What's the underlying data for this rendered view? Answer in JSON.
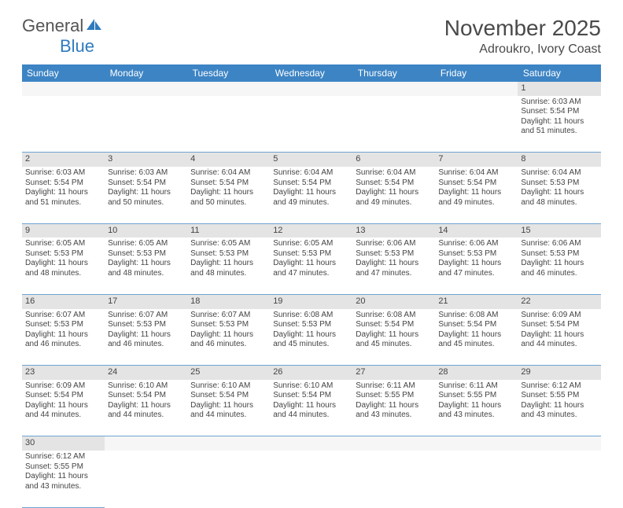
{
  "logo": {
    "part1": "General",
    "part2": "Blue"
  },
  "title": {
    "month": "November 2025",
    "location": "Adroukro, Ivory Coast"
  },
  "style": {
    "header_bg": "#3d84c4",
    "header_text": "#ffffff",
    "daynum_bg": "#e4e4e4",
    "row_border": "#6fa3d1",
    "page_bg": "#ffffff",
    "logo_gray": "#555555",
    "logo_blue": "#2f7bbf",
    "title_color": "#4a4a4a",
    "cell_font_size": 10,
    "header_font_size": 12,
    "title_font_size": 28
  },
  "weekdays": [
    "Sunday",
    "Monday",
    "Tuesday",
    "Wednesday",
    "Thursday",
    "Friday",
    "Saturday"
  ],
  "weeks": [
    {
      "nums": [
        "",
        "",
        "",
        "",
        "",
        "",
        "1"
      ],
      "cells": [
        null,
        null,
        null,
        null,
        null,
        null,
        {
          "sunrise": "6:03 AM",
          "sunset": "5:54 PM",
          "daylight": "11 hours and 51 minutes."
        }
      ]
    },
    {
      "nums": [
        "2",
        "3",
        "4",
        "5",
        "6",
        "7",
        "8"
      ],
      "cells": [
        {
          "sunrise": "6:03 AM",
          "sunset": "5:54 PM",
          "daylight": "11 hours and 51 minutes."
        },
        {
          "sunrise": "6:03 AM",
          "sunset": "5:54 PM",
          "daylight": "11 hours and 50 minutes."
        },
        {
          "sunrise": "6:04 AM",
          "sunset": "5:54 PM",
          "daylight": "11 hours and 50 minutes."
        },
        {
          "sunrise": "6:04 AM",
          "sunset": "5:54 PM",
          "daylight": "11 hours and 49 minutes."
        },
        {
          "sunrise": "6:04 AM",
          "sunset": "5:54 PM",
          "daylight": "11 hours and 49 minutes."
        },
        {
          "sunrise": "6:04 AM",
          "sunset": "5:54 PM",
          "daylight": "11 hours and 49 minutes."
        },
        {
          "sunrise": "6:04 AM",
          "sunset": "5:53 PM",
          "daylight": "11 hours and 48 minutes."
        }
      ]
    },
    {
      "nums": [
        "9",
        "10",
        "11",
        "12",
        "13",
        "14",
        "15"
      ],
      "cells": [
        {
          "sunrise": "6:05 AM",
          "sunset": "5:53 PM",
          "daylight": "11 hours and 48 minutes."
        },
        {
          "sunrise": "6:05 AM",
          "sunset": "5:53 PM",
          "daylight": "11 hours and 48 minutes."
        },
        {
          "sunrise": "6:05 AM",
          "sunset": "5:53 PM",
          "daylight": "11 hours and 48 minutes."
        },
        {
          "sunrise": "6:05 AM",
          "sunset": "5:53 PM",
          "daylight": "11 hours and 47 minutes."
        },
        {
          "sunrise": "6:06 AM",
          "sunset": "5:53 PM",
          "daylight": "11 hours and 47 minutes."
        },
        {
          "sunrise": "6:06 AM",
          "sunset": "5:53 PM",
          "daylight": "11 hours and 47 minutes."
        },
        {
          "sunrise": "6:06 AM",
          "sunset": "5:53 PM",
          "daylight": "11 hours and 46 minutes."
        }
      ]
    },
    {
      "nums": [
        "16",
        "17",
        "18",
        "19",
        "20",
        "21",
        "22"
      ],
      "cells": [
        {
          "sunrise": "6:07 AM",
          "sunset": "5:53 PM",
          "daylight": "11 hours and 46 minutes."
        },
        {
          "sunrise": "6:07 AM",
          "sunset": "5:53 PM",
          "daylight": "11 hours and 46 minutes."
        },
        {
          "sunrise": "6:07 AM",
          "sunset": "5:53 PM",
          "daylight": "11 hours and 46 minutes."
        },
        {
          "sunrise": "6:08 AM",
          "sunset": "5:53 PM",
          "daylight": "11 hours and 45 minutes."
        },
        {
          "sunrise": "6:08 AM",
          "sunset": "5:54 PM",
          "daylight": "11 hours and 45 minutes."
        },
        {
          "sunrise": "6:08 AM",
          "sunset": "5:54 PM",
          "daylight": "11 hours and 45 minutes."
        },
        {
          "sunrise": "6:09 AM",
          "sunset": "5:54 PM",
          "daylight": "11 hours and 44 minutes."
        }
      ]
    },
    {
      "nums": [
        "23",
        "24",
        "25",
        "26",
        "27",
        "28",
        "29"
      ],
      "cells": [
        {
          "sunrise": "6:09 AM",
          "sunset": "5:54 PM",
          "daylight": "11 hours and 44 minutes."
        },
        {
          "sunrise": "6:10 AM",
          "sunset": "5:54 PM",
          "daylight": "11 hours and 44 minutes."
        },
        {
          "sunrise": "6:10 AM",
          "sunset": "5:54 PM",
          "daylight": "11 hours and 44 minutes."
        },
        {
          "sunrise": "6:10 AM",
          "sunset": "5:54 PM",
          "daylight": "11 hours and 44 minutes."
        },
        {
          "sunrise": "6:11 AM",
          "sunset": "5:55 PM",
          "daylight": "11 hours and 43 minutes."
        },
        {
          "sunrise": "6:11 AM",
          "sunset": "5:55 PM",
          "daylight": "11 hours and 43 minutes."
        },
        {
          "sunrise": "6:12 AM",
          "sunset": "5:55 PM",
          "daylight": "11 hours and 43 minutes."
        }
      ]
    },
    {
      "nums": [
        "30",
        "",
        "",
        "",
        "",
        "",
        ""
      ],
      "cells": [
        {
          "sunrise": "6:12 AM",
          "sunset": "5:55 PM",
          "daylight": "11 hours and 43 minutes."
        },
        null,
        null,
        null,
        null,
        null,
        null
      ]
    }
  ],
  "labels": {
    "sunrise": "Sunrise: ",
    "sunset": "Sunset: ",
    "daylight": "Daylight: "
  }
}
